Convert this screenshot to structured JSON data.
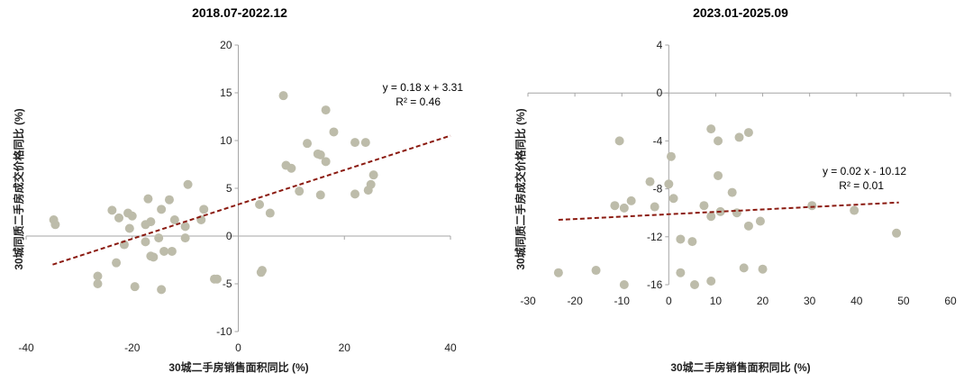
{
  "chart_data": [
    {
      "type": "scatter",
      "title": "2018.07-2022.12",
      "xlabel": "30城二手房销售面积同比 (%)",
      "ylabel": "30城同质二手房成交价格同比 (%)",
      "xlim": [
        -40,
        40
      ],
      "ylim": [
        -10,
        20
      ],
      "xticks": [
        -40,
        -20,
        0,
        20,
        40
      ],
      "yticks": [
        -10,
        -5,
        0,
        5,
        10,
        15,
        20
      ],
      "grid": false,
      "point_color": "#bdbcaa",
      "trend_color": "#8b1a10",
      "trendline": {
        "slope": 0.18,
        "intercept": 3.31,
        "x_range": [
          -35,
          40
        ],
        "equation": "y = 0.18 x + 3.31",
        "r2": "R² = 0.46"
      },
      "points": [
        [
          -34.8,
          1.7
        ],
        [
          -34.5,
          1.2
        ],
        [
          -26.5,
          -4.2
        ],
        [
          -26.5,
          -5.0
        ],
        [
          -23.8,
          2.7
        ],
        [
          -23.0,
          -2.8
        ],
        [
          -22.5,
          1.9
        ],
        [
          -21.5,
          -0.9
        ],
        [
          -20.8,
          2.4
        ],
        [
          -20.5,
          0.8
        ],
        [
          -20.0,
          2.1
        ],
        [
          -19.5,
          -5.3
        ],
        [
          -17.5,
          1.2
        ],
        [
          -17.5,
          -0.6
        ],
        [
          -17.0,
          3.9
        ],
        [
          -16.5,
          1.5
        ],
        [
          -16.5,
          -2.1
        ],
        [
          -16.0,
          -2.2
        ],
        [
          -15.0,
          -0.2
        ],
        [
          -14.5,
          2.8
        ],
        [
          -14.5,
          -5.6
        ],
        [
          -14.0,
          -1.6
        ],
        [
          -13.0,
          3.8
        ],
        [
          -12.5,
          -1.6
        ],
        [
          -12.0,
          1.7
        ],
        [
          -10.0,
          1.0
        ],
        [
          -10.0,
          -0.2
        ],
        [
          -9.5,
          5.4
        ],
        [
          -7.0,
          1.7
        ],
        [
          -6.5,
          2.8
        ],
        [
          -4.5,
          -4.5
        ],
        [
          -4.0,
          -4.5
        ],
        [
          4.0,
          3.3
        ],
        [
          4.5,
          -3.6
        ],
        [
          4.3,
          -3.8
        ],
        [
          6.0,
          2.4
        ],
        [
          8.5,
          14.7
        ],
        [
          9.0,
          7.4
        ],
        [
          10.0,
          7.1
        ],
        [
          11.5,
          4.7
        ],
        [
          13.0,
          9.7
        ],
        [
          15.0,
          8.6
        ],
        [
          15.5,
          4.3
        ],
        [
          15.5,
          8.5
        ],
        [
          16.5,
          13.2
        ],
        [
          16.5,
          7.8
        ],
        [
          18.0,
          10.9
        ],
        [
          22.0,
          9.8
        ],
        [
          22.0,
          4.4
        ],
        [
          24.0,
          9.8
        ],
        [
          24.5,
          4.8
        ],
        [
          25.0,
          5.4
        ],
        [
          25.5,
          6.4
        ]
      ]
    },
    {
      "type": "scatter",
      "title": "2023.01-2025.09",
      "xlabel": "30城二手房销售面积同比 (%)",
      "ylabel": "30城同质二手房成交价格同比 (%)",
      "xlim": [
        -30,
        60
      ],
      "ylim": [
        -16,
        4
      ],
      "xticks": [
        -30,
        -20,
        -10,
        0,
        10,
        20,
        30,
        40,
        50,
        60
      ],
      "yticks": [
        -16,
        -12,
        -8,
        -4,
        0,
        4
      ],
      "grid": false,
      "point_color": "#bdbcaa",
      "trend_color": "#8b1a10",
      "trendline": {
        "slope": 0.02,
        "intercept": -10.12,
        "x_range": [
          -23.5,
          49
        ],
        "equation": "y = 0.02 x - 10.12",
        "r2": "R² = 0.01"
      },
      "points": [
        [
          -23.5,
          -15.0
        ],
        [
          -15.5,
          -14.8
        ],
        [
          -11.5,
          -9.4
        ],
        [
          -10.5,
          -4.0
        ],
        [
          -9.5,
          -9.6
        ],
        [
          -9.5,
          -16.0
        ],
        [
          -8.0,
          -9.0
        ],
        [
          -4.0,
          -7.4
        ],
        [
          -3.0,
          -9.5
        ],
        [
          0.5,
          -5.3
        ],
        [
          0.0,
          -7.6
        ],
        [
          1.0,
          -8.8
        ],
        [
          2.5,
          -12.2
        ],
        [
          2.5,
          -15.0
        ],
        [
          5.0,
          -12.4
        ],
        [
          5.5,
          -16.0
        ],
        [
          7.5,
          -9.4
        ],
        [
          9.0,
          -3.0
        ],
        [
          9.0,
          -10.3
        ],
        [
          9.0,
          -15.7
        ],
        [
          10.5,
          -6.9
        ],
        [
          10.5,
          -4.0
        ],
        [
          11.0,
          -9.9
        ],
        [
          13.5,
          -8.3
        ],
        [
          14.5,
          -10.0
        ],
        [
          15.0,
          -3.7
        ],
        [
          16.0,
          -14.6
        ],
        [
          17.0,
          -11.1
        ],
        [
          17.0,
          -3.3
        ],
        [
          19.5,
          -10.7
        ],
        [
          20.0,
          -14.7
        ],
        [
          30.5,
          -9.4
        ],
        [
          39.5,
          -9.8
        ],
        [
          48.5,
          -11.7
        ]
      ]
    }
  ]
}
